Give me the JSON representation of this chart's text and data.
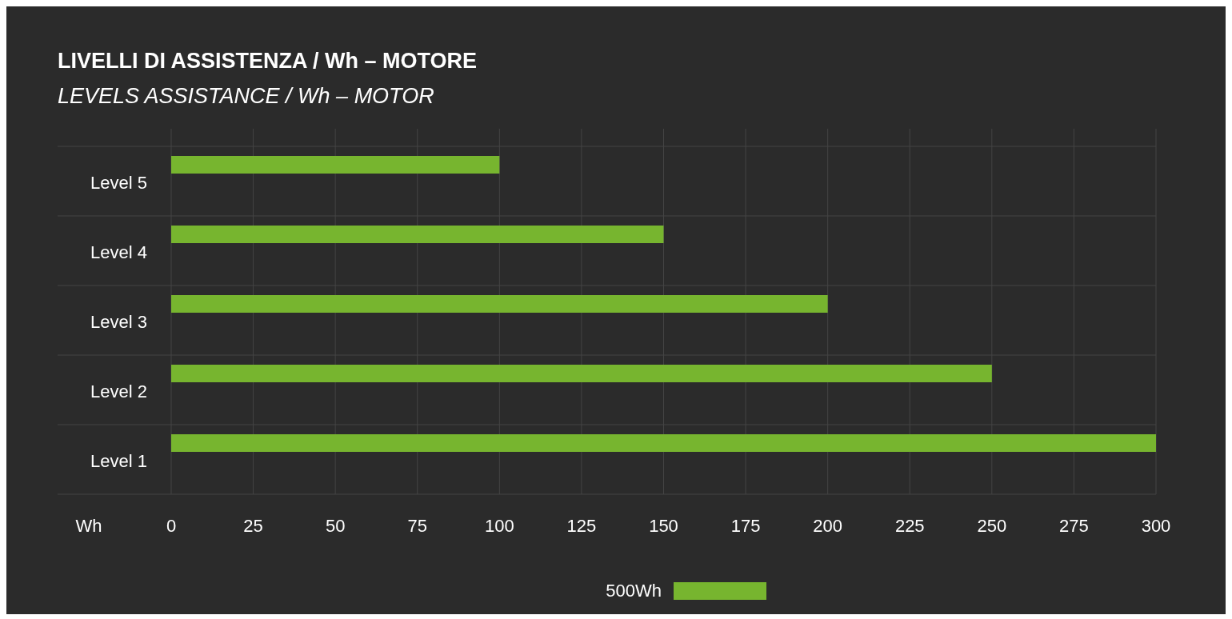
{
  "chart_data": {
    "type": "bar",
    "orientation": "horizontal",
    "title": "LIVELLI DI ASSISTENZA / Wh – MOTORE",
    "subtitle": "LEVELS ASSISTANCE / Wh – MOTOR",
    "xlabel": "Wh",
    "categories": [
      "Level 5",
      "Level 4",
      "Level 3",
      "Level 2",
      "Level 1"
    ],
    "series": [
      {
        "name": "500Wh",
        "color": "#77b52f",
        "values": [
          100,
          150,
          200,
          250,
          300
        ]
      }
    ],
    "xlim": [
      0,
      300
    ],
    "xticks": [
      0,
      25,
      50,
      75,
      100,
      125,
      150,
      175,
      200,
      225,
      250,
      275,
      300
    ],
    "grid": true,
    "legend": "bottom"
  }
}
